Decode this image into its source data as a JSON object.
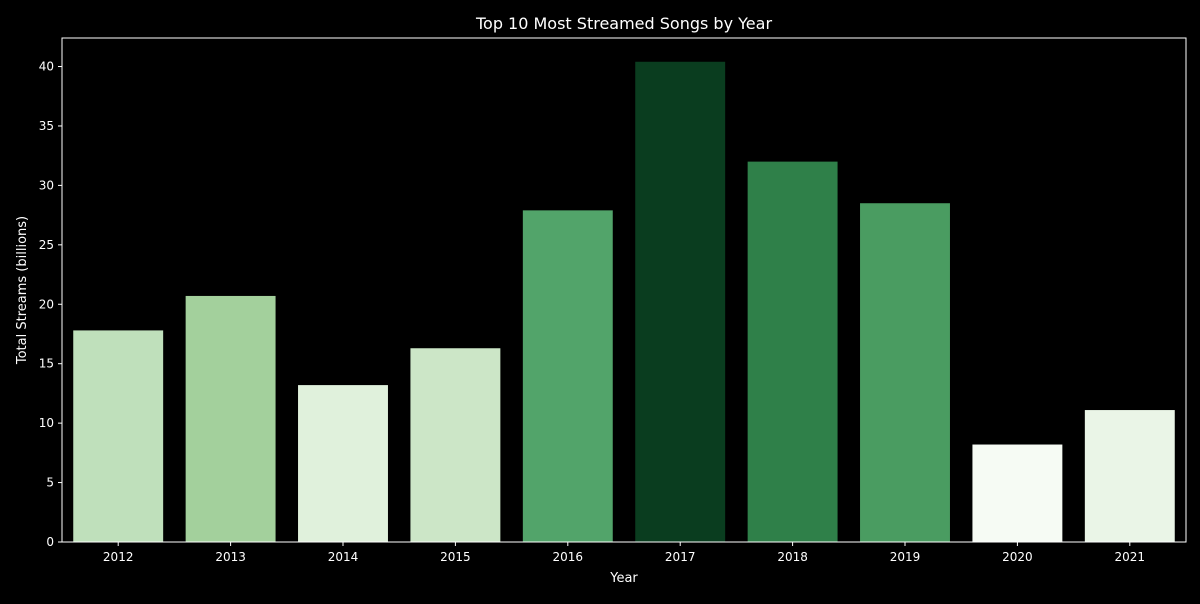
{
  "colors": {
    "background": "#000000",
    "text": "#ffffff",
    "axis": "#ffffff",
    "bar_colors": [
      "#bfe0bb",
      "#a3d09c",
      "#e0f1dc",
      "#cce6c7",
      "#52a46a",
      "#0a3d1f",
      "#2f8049",
      "#4a9c61",
      "#f6fbf4",
      "#eaf5e7"
    ]
  },
  "chart_data": {
    "type": "bar",
    "title": "Top 10 Most Streamed Songs by Year",
    "xlabel": "Year",
    "ylabel": "Total Streams (billions)",
    "categories": [
      "2012",
      "2013",
      "2014",
      "2015",
      "2016",
      "2017",
      "2018",
      "2019",
      "2020",
      "2021"
    ],
    "values": [
      17.8,
      20.7,
      13.2,
      16.3,
      27.9,
      40.4,
      32.0,
      28.5,
      8.2,
      11.1
    ],
    "ylim": [
      0,
      42.4
    ],
    "yticks": [
      0,
      5,
      10,
      15,
      20,
      25,
      30,
      35,
      40
    ],
    "grid": false,
    "legend": "none"
  }
}
